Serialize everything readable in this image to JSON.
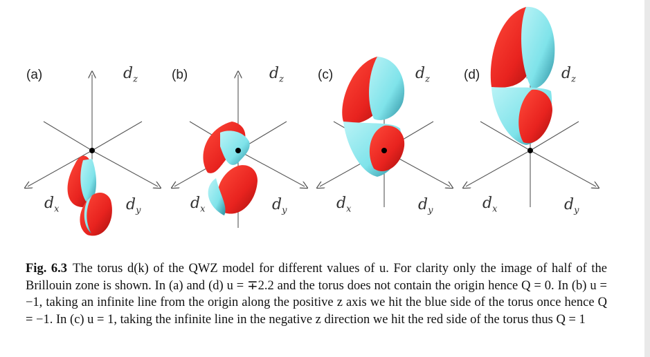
{
  "panels": [
    {
      "label": "(a)",
      "dx": "d",
      "dx_sub": "x",
      "dy": "d",
      "dy_sub": "y",
      "dz": "d",
      "dz_sub": "z"
    },
    {
      "label": "(b)",
      "dx": "d",
      "dx_sub": "x",
      "dy": "d",
      "dy_sub": "y",
      "dz": "d",
      "dz_sub": "z"
    },
    {
      "label": "(c)",
      "dx": "d",
      "dx_sub": "x",
      "dy": "d",
      "dy_sub": "y",
      "dz": "d",
      "dz_sub": "z"
    },
    {
      "label": "(d)",
      "dx": "d",
      "dx_sub": "x",
      "dy": "d",
      "dy_sub": "y",
      "dz": "d",
      "dz_sub": "z"
    }
  ],
  "colors": {
    "red_side": "#e8231f",
    "blue_side": "#7fe3ea",
    "axis": "#555555",
    "origin": "#000000"
  },
  "caption": {
    "fig_id": "Fig. 6.3",
    "text": "The torus d(k) of the QWZ model for different values of u. For clarity only the image of half of the Brillouin zone is shown. In (a) and (d) u = ∓2.2 and the torus does not contain the origin hence Q = 0. In (b) u = −1, taking an infinite line from the origin along the positive z axis we hit the blue side of the torus once hence Q = −1. In (c) u = 1, taking the infinite line in the negative z direction we hit the red side of the torus thus Q = 1"
  }
}
